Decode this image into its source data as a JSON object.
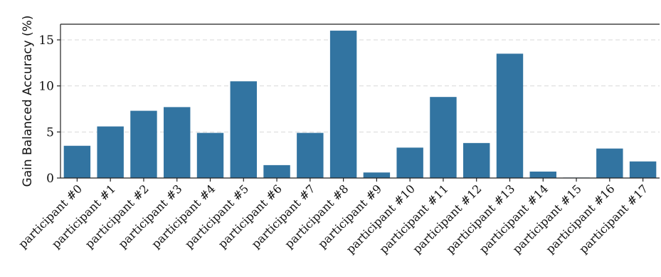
{
  "chart_data": {
    "type": "bar",
    "ylabel": "Gain Balanced Accuracy (%)",
    "xlabel": "",
    "ylim": [
      0,
      16.7
    ],
    "yticks": [
      0,
      5,
      10,
      15
    ],
    "grid": "horizontal dashed",
    "bar_color": "#3274a1",
    "categories": [
      "participant #0",
      "participant #1",
      "participant #2",
      "participant #3",
      "participant #4",
      "participant #5",
      "participant #6",
      "participant #7",
      "participant #8",
      "participant #9",
      "participant #10",
      "participant #11",
      "participant #12",
      "participant #13",
      "participant #14",
      "participant #15",
      "participant #16",
      "participant #17"
    ],
    "values": [
      3.5,
      5.6,
      7.3,
      7.7,
      4.9,
      10.5,
      1.4,
      4.9,
      16.0,
      0.6,
      3.3,
      8.8,
      3.8,
      13.5,
      0.7,
      0.05,
      3.2,
      1.8
    ]
  }
}
